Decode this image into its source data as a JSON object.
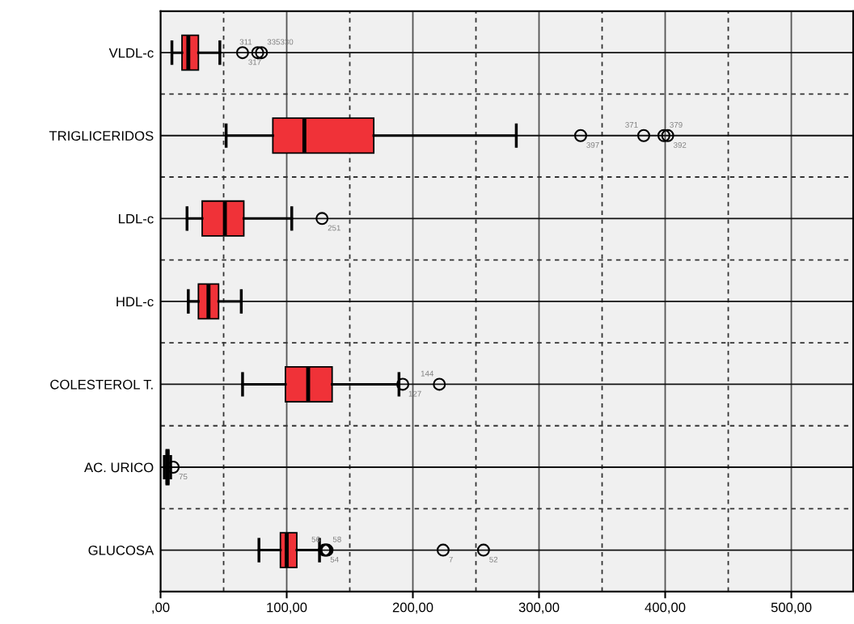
{
  "chart_data": {
    "type": "box",
    "orientation": "horizontal",
    "categories": [
      "VLDL-c",
      "TRIGLICERIDOS",
      "LDL-c",
      "HDL-c",
      "COLESTEROL T.",
      "AC. URICO",
      "GLUCOSA"
    ],
    "boxes": [
      {
        "low": 9,
        "q1": 17,
        "median": 22,
        "q3": 30,
        "high": 47,
        "outliers": [
          65,
          77,
          80
        ]
      },
      {
        "low": 52,
        "q1": 89,
        "median": 114,
        "q3": 169,
        "high": 282,
        "outliers": [
          333,
          383,
          399,
          402
        ]
      },
      {
        "low": 21,
        "q1": 33,
        "median": 51,
        "q3": 66,
        "high": 104,
        "outliers": [
          128
        ]
      },
      {
        "low": 22,
        "q1": 30,
        "median": 38,
        "q3": 46,
        "high": 64
      },
      {
        "low": 65,
        "q1": 99,
        "median": 117,
        "q3": 136,
        "high": 189,
        "outliers": [
          192,
          221
        ]
      },
      {
        "low": 3,
        "q1": 4.5,
        "median": 5.5,
        "q3": 6.5,
        "high": 8,
        "outliers": [
          10
        ]
      },
      {
        "low": 78,
        "q1": 95,
        "median": 100,
        "q3": 108,
        "high": 126,
        "outliers": [
          130,
          131,
          132,
          224,
          256
        ]
      }
    ],
    "color": "#f03238",
    "xlim": [
      0,
      549
    ],
    "xticks": [
      {
        "value": 0,
        "label": ",00"
      },
      {
        "value": 100,
        "label": "100,00"
      },
      {
        "value": 200,
        "label": "200,00"
      },
      {
        "value": 300,
        "label": "300,00"
      },
      {
        "value": 400,
        "label": "400,00"
      },
      {
        "value": 500,
        "label": "500,00"
      }
    ],
    "grid": true,
    "annotations": [
      "317",
      "311",
      "335330",
      "397",
      "371",
      "379",
      "392",
      "251",
      "127",
      "144",
      "75",
      "54",
      "56",
      "58",
      "7",
      "52"
    ]
  }
}
